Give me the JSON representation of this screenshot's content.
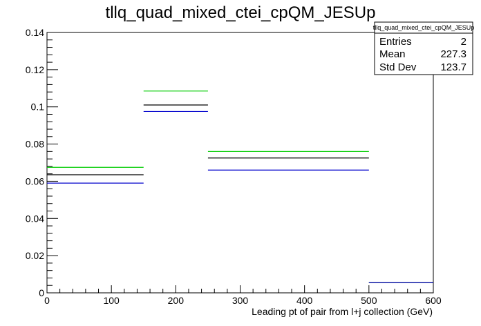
{
  "chart_data": {
    "type": "step-histogram",
    "title": "tllq_quad_mixed_ctei_cpQM_JESUp",
    "xlabel": "Leading pt of pair from l+j collection (GeV)",
    "ylabel": "",
    "xlim": [
      0,
      600
    ],
    "ylim": [
      0,
      0.14
    ],
    "x_ticks": [
      0,
      100,
      200,
      300,
      400,
      500,
      600
    ],
    "x_tick_labels": [
      "0",
      "100",
      "200",
      "300",
      "400",
      "500",
      "600"
    ],
    "y_ticks": [
      0,
      0.02,
      0.04,
      0.06,
      0.08,
      0.1,
      0.12,
      0.14
    ],
    "y_tick_labels": [
      "0",
      "0.02",
      "0.04",
      "0.06",
      "0.08",
      "0.1",
      "0.12",
      "0.14"
    ],
    "bin_edges": [
      0,
      150,
      250,
      500,
      600
    ],
    "series": [
      {
        "color": "#00cc00",
        "values": [
          0.0675,
          0.1085,
          0.076,
          0.0055
        ]
      },
      {
        "color": "#000000",
        "values": [
          0.0635,
          0.101,
          0.0725,
          0.0055
        ]
      },
      {
        "color": "#0000cc",
        "values": [
          0.059,
          0.0975,
          0.066,
          0.0055
        ]
      }
    ],
    "grid": false,
    "stats_box": {
      "title": "tllq_quad_mixed_ctei_cpQM_JESUp",
      "rows": [
        {
          "label": "Entries",
          "value": "2"
        },
        {
          "label": "Mean",
          "value": "227.3"
        },
        {
          "label": "Std Dev",
          "value": "123.7"
        }
      ],
      "placement": "top-right"
    }
  }
}
